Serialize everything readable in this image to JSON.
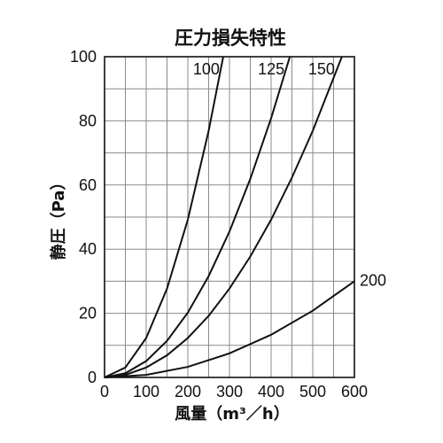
{
  "chart_data": {
    "type": "line",
    "title": "圧力損失特性",
    "xlabel": "風量（m³／h）",
    "ylabel": "静圧（Pa）",
    "xlim": [
      0,
      600
    ],
    "ylim": [
      0,
      100
    ],
    "xticks": [
      "0",
      "100",
      "200",
      "300",
      "400",
      "500",
      "600"
    ],
    "yticks": [
      "0",
      "20",
      "40",
      "60",
      "80",
      "100"
    ],
    "grid": true,
    "series": [
      {
        "name": "100",
        "x": [
          0,
          50,
          100,
          150,
          200,
          250,
          285
        ],
        "y": [
          0,
          3.1,
          12.3,
          27.7,
          49.2,
          76.9,
          100
        ]
      },
      {
        "name": "125",
        "x": [
          0,
          50,
          100,
          150,
          200,
          250,
          300,
          350,
          400,
          445
        ],
        "y": [
          0,
          1.3,
          5.1,
          11.4,
          20.2,
          31.6,
          45.5,
          61.9,
          80.8,
          100
        ]
      },
      {
        "name": "150",
        "x": [
          0,
          50,
          100,
          150,
          200,
          250,
          300,
          350,
          400,
          450,
          500,
          570
        ],
        "y": [
          0,
          0.8,
          3.1,
          6.9,
          12.3,
          19.2,
          27.7,
          37.7,
          49.2,
          62.3,
          76.9,
          100
        ]
      },
      {
        "name": "200",
        "x": [
          0,
          100,
          200,
          300,
          400,
          500,
          600
        ],
        "y": [
          0,
          0.8,
          3.3,
          7.5,
          13.3,
          20.8,
          30
        ]
      }
    ]
  }
}
